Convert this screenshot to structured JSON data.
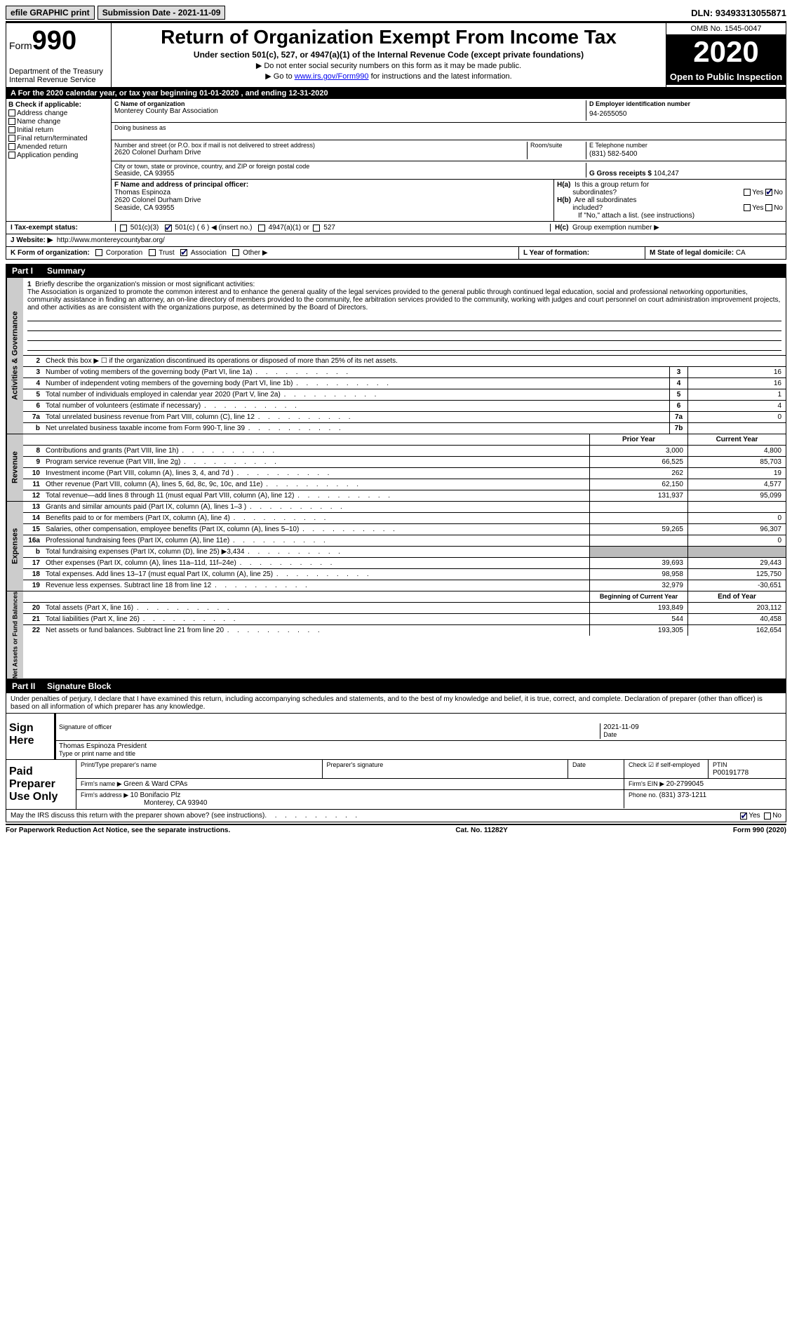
{
  "topbar": {
    "efile": "efile GRAPHIC print",
    "subdate_label": "Submission Date - ",
    "subdate": "2021-11-09",
    "dln_label": "DLN: ",
    "dln": "93493313055871"
  },
  "header": {
    "form_label": "Form",
    "form_num": "990",
    "dept": "Department of the Treasury\nInternal Revenue Service",
    "title": "Return of Organization Exempt From Income Tax",
    "sub": "Under section 501(c), 527, or 4947(a)(1) of the Internal Revenue Code (except private foundations)",
    "note1": "▶ Do not enter social security numbers on this form as it may be made public.",
    "note2_pre": "▶ Go to ",
    "note2_link": "www.irs.gov/Form990",
    "note2_post": " for instructions and the latest information.",
    "omb": "OMB No. 1545-0047",
    "year": "2020",
    "open": "Open to Public Inspection"
  },
  "sectionA": {
    "ty_line": "A For the 2020 calendar year, or tax year beginning 01-01-2020   , and ending 12-31-2020",
    "b_label": "B Check if applicable:",
    "b_items": [
      "Address change",
      "Name change",
      "Initial return",
      "Final return/terminated",
      "Amended return",
      "Application pending"
    ],
    "c_label": "C Name of organization",
    "org_name": "Monterey County Bar Association",
    "dba_label": "Doing business as",
    "addr_label": "Number and street (or P.O. box if mail is not delivered to street address)",
    "addr": "2620 Colonel Durham Drive",
    "room_label": "Room/suite",
    "city_label": "City or town, state or province, country, and ZIP or foreign postal code",
    "city": "Seaside, CA  93955",
    "d_label": "D Employer identification number",
    "ein": "94-2655050",
    "e_label": "E Telephone number",
    "phone": "(831) 582-5400",
    "g_label": "G Gross receipts $ ",
    "gross": "104,247",
    "f_label": "F  Name and address of principal officer:",
    "f_name": "Thomas Espinoza",
    "f_addr1": "2620 Colonel Durham Drive",
    "f_addr2": "Seaside, CA  93955",
    "ha_label": "H(a)  Is this a group return for subordinates?",
    "hb_label": "H(b)  Are all subordinates included?",
    "hb_note": "If \"No,\" attach a list. (see instructions)",
    "hc_label": "H(c)  Group exemption number ▶",
    "yes": "Yes",
    "no": "No",
    "i_label": "I  Tax-exempt status:",
    "i_501c3": "501(c)(3)",
    "i_501c": "501(c) ( 6 ) ◀ (insert no.)",
    "i_4947": "4947(a)(1) or",
    "i_527": "527",
    "j_label": "J  Website: ▶",
    "website": "http://www.montereycountybar.org/",
    "k_label": "K Form of organization:",
    "k_corp": "Corporation",
    "k_trust": "Trust",
    "k_assoc": "Association",
    "k_other": "Other ▶",
    "l_label": "L Year of formation:",
    "m_label": "M State of legal domicile: ",
    "m_state": "CA"
  },
  "part1": {
    "label": "Part I",
    "title": "Summary",
    "q1_label": "Briefly describe the organization's mission or most significant activities:",
    "q1_text": "The Association is organized to promote the common interest and to enhance the general quality of the legal services provided to the general public through continued legal education, social and professional networking opportunities, community assistance in finding an attorney, an on-line directory of members provided to the community, fee arbitration services provided to the community, working with judges and court personnel on court administration improvement projects, and other activities as are consistent with the organizations purpose, as determined by the Board of Directors.",
    "q2": "Check this box ▶ ☐  if the organization discontinued its operations or disposed of more than 25% of its net assets.",
    "sections": {
      "ag": "Activities & Governance",
      "rev": "Revenue",
      "exp": "Expenses",
      "na": "Net Assets or Fund Balances"
    },
    "rows_ag": [
      {
        "n": "3",
        "d": "Number of voting members of the governing body (Part VI, line 1a)",
        "k": "3",
        "v": "16"
      },
      {
        "n": "4",
        "d": "Number of independent voting members of the governing body (Part VI, line 1b)",
        "k": "4",
        "v": "16"
      },
      {
        "n": "5",
        "d": "Total number of individuals employed in calendar year 2020 (Part V, line 2a)",
        "k": "5",
        "v": "1"
      },
      {
        "n": "6",
        "d": "Total number of volunteers (estimate if necessary)",
        "k": "6",
        "v": "4"
      },
      {
        "n": "7a",
        "d": "Total unrelated business revenue from Part VIII, column (C), line 12",
        "k": "7a",
        "v": "0"
      },
      {
        "n": "b",
        "d": "Net unrelated business taxable income from Form 990-T, line 39",
        "k": "7b",
        "v": ""
      }
    ],
    "hdr_prior": "Prior Year",
    "hdr_curr": "Current Year",
    "rows_rev": [
      {
        "n": "8",
        "d": "Contributions and grants (Part VIII, line 1h)",
        "p": "3,000",
        "c": "4,800"
      },
      {
        "n": "9",
        "d": "Program service revenue (Part VIII, line 2g)",
        "p": "66,525",
        "c": "85,703"
      },
      {
        "n": "10",
        "d": "Investment income (Part VIII, column (A), lines 3, 4, and 7d )",
        "p": "262",
        "c": "19"
      },
      {
        "n": "11",
        "d": "Other revenue (Part VIII, column (A), lines 5, 6d, 8c, 9c, 10c, and 11e)",
        "p": "62,150",
        "c": "4,577"
      },
      {
        "n": "12",
        "d": "Total revenue—add lines 8 through 11 (must equal Part VIII, column (A), line 12)",
        "p": "131,937",
        "c": "95,099"
      }
    ],
    "rows_exp": [
      {
        "n": "13",
        "d": "Grants and similar amounts paid (Part IX, column (A), lines 1–3 )",
        "p": "",
        "c": ""
      },
      {
        "n": "14",
        "d": "Benefits paid to or for members (Part IX, column (A), line 4)",
        "p": "",
        "c": "0"
      },
      {
        "n": "15",
        "d": "Salaries, other compensation, employee benefits (Part IX, column (A), lines 5–10)",
        "p": "59,265",
        "c": "96,307"
      },
      {
        "n": "16a",
        "d": "Professional fundraising fees (Part IX, column (A), line 11e)",
        "p": "",
        "c": "0"
      },
      {
        "n": "b",
        "d": "Total fundraising expenses (Part IX, column (D), line 25) ▶3,434",
        "p": "grey",
        "c": "grey"
      },
      {
        "n": "17",
        "d": "Other expenses (Part IX, column (A), lines 11a–11d, 11f–24e)",
        "p": "39,693",
        "c": "29,443"
      },
      {
        "n": "18",
        "d": "Total expenses. Add lines 13–17 (must equal Part IX, column (A), line 25)",
        "p": "98,958",
        "c": "125,750"
      },
      {
        "n": "19",
        "d": "Revenue less expenses. Subtract line 18 from line 12",
        "p": "32,979",
        "c": "-30,651"
      }
    ],
    "hdr_boy": "Beginning of Current Year",
    "hdr_eoy": "End of Year",
    "rows_na": [
      {
        "n": "20",
        "d": "Total assets (Part X, line 16)",
        "p": "193,849",
        "c": "203,112"
      },
      {
        "n": "21",
        "d": "Total liabilities (Part X, line 26)",
        "p": "544",
        "c": "40,458"
      },
      {
        "n": "22",
        "d": "Net assets or fund balances. Subtract line 21 from line 20",
        "p": "193,305",
        "c": "162,654"
      }
    ]
  },
  "part2": {
    "label": "Part II",
    "title": "Signature Block",
    "declare": "Under penalties of perjury, I declare that I have examined this return, including accompanying schedules and statements, and to the best of my knowledge and belief, it is true, correct, and complete. Declaration of preparer (other than officer) is based on all information of which preparer has any knowledge.",
    "sign_here": "Sign Here",
    "sig_officer": "Signature of officer",
    "sig_date": "Date",
    "sig_date_val": "2021-11-09",
    "typed_name": "Thomas Espinoza  President",
    "typed_label": "Type or print name and title",
    "paid_prep": "Paid Preparer Use Only",
    "pp_name_label": "Print/Type preparer's name",
    "pp_sig_label": "Preparer's signature",
    "pp_date_label": "Date",
    "pp_check_label": "Check ☑ if self-employed",
    "ptin_label": "PTIN",
    "ptin": "P00191778",
    "firm_name_label": "Firm's name    ▶ ",
    "firm_name": "Green & Ward CPAs",
    "firm_ein_label": "Firm's EIN ▶ ",
    "firm_ein": "20-2799045",
    "firm_addr_label": "Firm's address ▶ ",
    "firm_addr1": "10 Bonifacio Plz",
    "firm_addr2": "Monterey, CA  93940",
    "firm_phone_label": "Phone no. ",
    "firm_phone": "(831) 373-1211",
    "may_irs": "May the IRS discuss this return with the preparer shown above? (see instructions)"
  },
  "footer": {
    "pra": "For Paperwork Reduction Act Notice, see the separate instructions.",
    "cat": "Cat. No. 11282Y",
    "form": "Form 990 (2020)"
  }
}
